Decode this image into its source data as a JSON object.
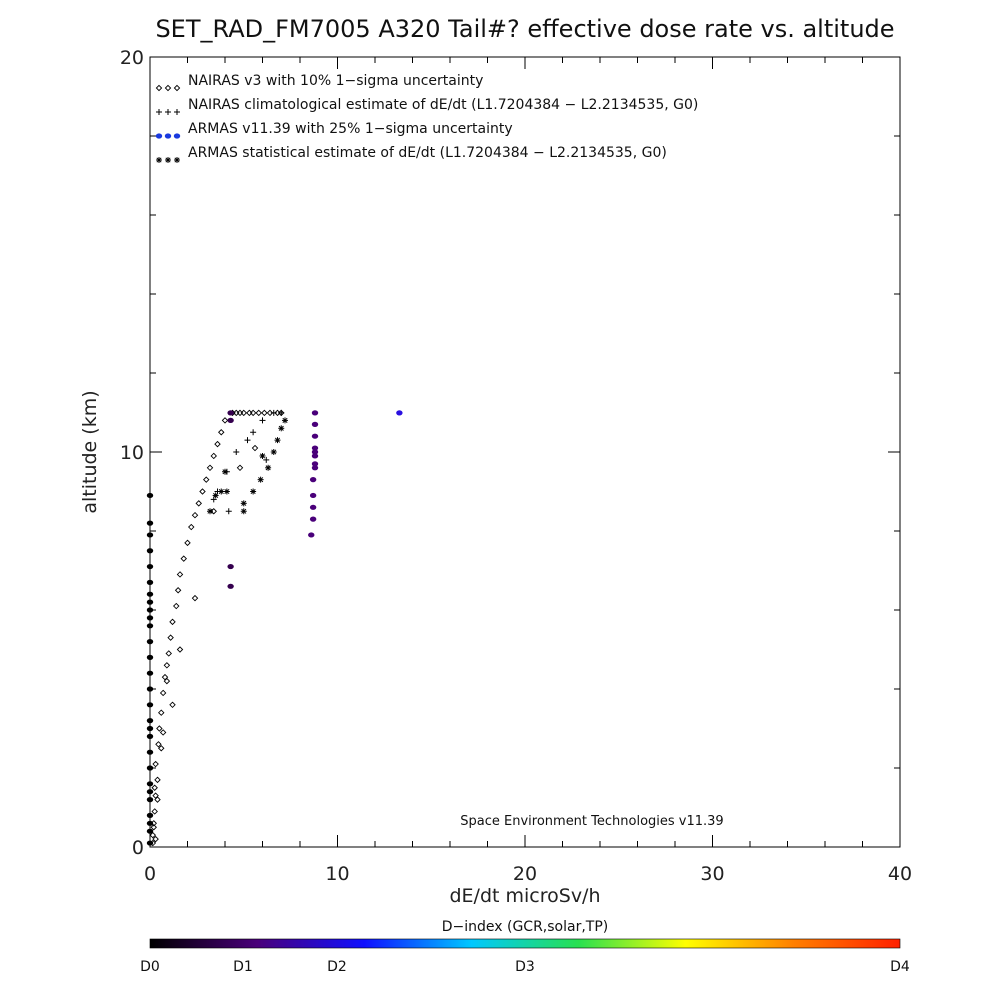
{
  "chart_data": {
    "type": "scatter",
    "title": "SET_RAD_FM7005  A320 Tail#? effective dose rate vs. altitude",
    "xlabel": "dE/dt microSv/h",
    "ylabel": "altitude (km)",
    "xlim": [
      0,
      40
    ],
    "ylim": [
      0,
      20
    ],
    "x_ticks": [
      0,
      10,
      20,
      30,
      40
    ],
    "y_ticks": [
      0,
      10,
      20
    ],
    "legend_position": "top-left",
    "annotation": "Space Environment Technologies v11.39",
    "colorbar": {
      "label": "D−index (GCR,solar,TP)",
      "tick_labels": [
        "D0",
        "D1",
        "D2",
        "D3",
        "D4"
      ],
      "tick_values": [
        0,
        1,
        2,
        3,
        4
      ],
      "colors": [
        "#000000",
        "#4a007a",
        "#1010ff",
        "#00c8ff",
        "#28e050",
        "#ffff00",
        "#ff8000",
        "#ff2000"
      ]
    },
    "series": [
      {
        "name": "NAIRAS v3 with 10% 1−sigma uncertainty",
        "marker": "diamond",
        "color": "#000000",
        "x": [
          0.15,
          0.2,
          0.25,
          0.3,
          0.4,
          0.3,
          0.45,
          0.5,
          0.6,
          0.7,
          0.8,
          0.9,
          1.0,
          1.1,
          1.2,
          1.4,
          1.5,
          1.6,
          1.8,
          2.0,
          2.2,
          2.4,
          2.6,
          2.8,
          3.0,
          3.2,
          3.4,
          3.6,
          3.8,
          4.0,
          4.4,
          4.6,
          4.8,
          5.0,
          5.3,
          5.5,
          5.8,
          6.1,
          6.4,
          6.8,
          7.0,
          1.2,
          2.4,
          0.9,
          0.6,
          0.4,
          0.3,
          0.25,
          0.2,
          0.15,
          0.7,
          1.6,
          3.4,
          4.8,
          5.6
        ],
        "y": [
          0.1,
          0.5,
          0.9,
          1.3,
          1.7,
          2.1,
          2.6,
          3.0,
          3.4,
          3.9,
          4.3,
          4.6,
          4.9,
          5.3,
          5.7,
          6.1,
          6.5,
          6.9,
          7.3,
          7.7,
          8.1,
          8.4,
          8.7,
          9.0,
          9.3,
          9.6,
          9.9,
          10.2,
          10.5,
          10.8,
          10.99,
          10.99,
          10.99,
          10.99,
          10.99,
          10.99,
          10.99,
          10.99,
          10.99,
          10.99,
          10.99,
          3.6,
          6.3,
          4.2,
          2.5,
          1.2,
          0.2,
          1.5,
          0.6,
          0.3,
          2.9,
          5.0,
          8.5,
          9.6,
          10.1
        ]
      },
      {
        "name": "NAIRAS climatological estimate of dE/dt (L1.7204384 − L2.2134535, G0)",
        "marker": "plus",
        "color": "#000000",
        "x": [
          3.4,
          4.1,
          4.6,
          5.2,
          5.5,
          6.0,
          6.6,
          7.0,
          4.2,
          3.6
        ],
        "y": [
          8.8,
          9.5,
          10.0,
          10.3,
          10.5,
          10.8,
          10.99,
          10.99,
          8.5,
          9.0
        ],
        "extra_x": [
          6.2
        ],
        "extra_y": [
          9.8
        ]
      },
      {
        "name": "ARMAS v11.39 with 25% 1−sigma uncertainty",
        "marker": "dot",
        "color": "#1a3adf",
        "x": [
          0.0,
          0.0,
          0.0,
          0.0,
          0.0,
          0.0,
          0.0,
          0.0,
          0.0,
          0.0,
          0.0,
          0.0,
          0.0,
          0.0,
          0.0,
          0.0,
          0.0,
          0.0,
          0.0,
          0.0,
          0.0,
          0.0,
          0.0,
          0.0,
          0.0,
          0.0,
          0.0,
          0.0,
          4.3,
          4.3,
          4.3,
          4.3,
          8.6,
          8.7,
          8.7,
          8.7,
          8.7,
          8.8,
          8.8,
          8.8,
          8.8,
          8.8,
          8.8,
          8.8,
          8.8,
          13.3
        ],
        "y": [
          0.1,
          0.4,
          0.8,
          1.2,
          1.6,
          2.0,
          2.4,
          2.8,
          3.2,
          3.6,
          4.0,
          4.4,
          4.8,
          5.2,
          5.6,
          6.0,
          6.4,
          6.7,
          7.1,
          7.5,
          7.9,
          8.2,
          8.9,
          6.2,
          5.8,
          3.0,
          1.4,
          0.6,
          6.6,
          7.1,
          10.8,
          10.99,
          7.9,
          8.3,
          8.6,
          8.9,
          9.3,
          9.6,
          9.9,
          10.1,
          10.4,
          10.7,
          10.99,
          9.7,
          10.0,
          10.99
        ],
        "d_index": [
          0.0,
          0.0,
          0.0,
          0.0,
          0.0,
          0.0,
          0.0,
          0.0,
          0.0,
          0.0,
          0.0,
          0.0,
          0.0,
          0.0,
          0.0,
          0.0,
          0.0,
          0.0,
          0.0,
          0.0,
          0.0,
          0.0,
          0.0,
          0.0,
          0.0,
          0.0,
          0.0,
          0.0,
          0.5,
          0.5,
          0.55,
          0.55,
          0.95,
          0.95,
          0.95,
          0.95,
          0.95,
          0.95,
          0.95,
          0.95,
          0.95,
          0.95,
          0.95,
          0.95,
          0.95,
          1.75
        ]
      },
      {
        "name": "ARMAS statistical estimate of dE/dt (L1.7204384 − L2.2134535, G0)",
        "marker": "asterisk",
        "color": "#000000",
        "x": [
          3.2,
          3.5,
          3.8,
          4.0,
          5.0,
          5.0,
          5.5,
          5.9,
          6.3,
          6.6,
          6.8,
          7.0,
          7.2,
          6.0,
          4.1
        ],
        "y": [
          8.5,
          8.9,
          9.0,
          9.5,
          8.5,
          8.7,
          9.0,
          9.3,
          9.6,
          10.0,
          10.3,
          10.6,
          10.8,
          9.9,
          9.0
        ]
      }
    ]
  }
}
